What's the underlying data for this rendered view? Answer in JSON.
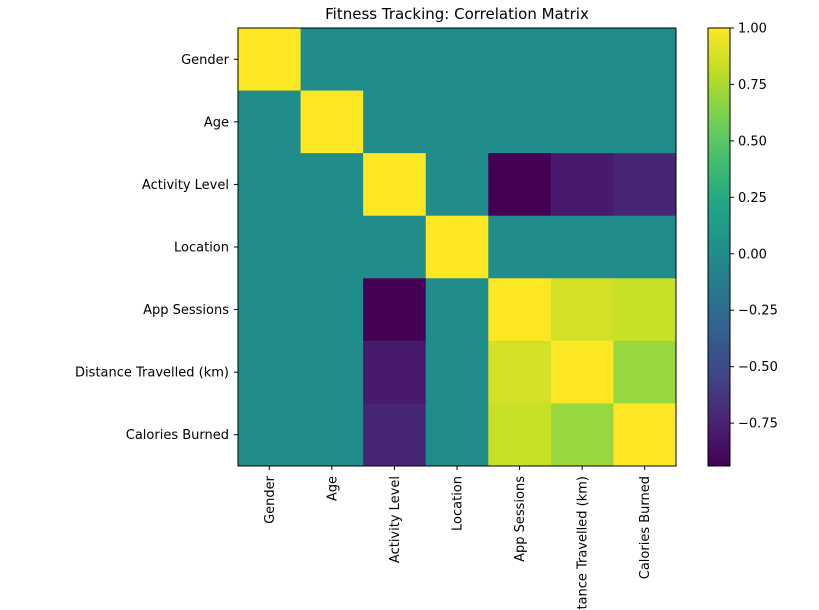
{
  "chart_data": {
    "type": "heatmap",
    "title": "Fitness Tracking: Correlation Matrix",
    "xlabel": "",
    "ylabel": "",
    "row_labels": [
      "Gender",
      "Age",
      "Activity Level",
      "Location",
      "App Sessions",
      "Distance Travelled (km)",
      "Calories Burned"
    ],
    "col_labels": [
      "Gender",
      "Age",
      "Activity Level",
      "Location",
      "App Sessions",
      "Distance Travelled (km)",
      "Calories Burned"
    ],
    "values": [
      [
        1.0,
        0.0,
        0.0,
        0.0,
        0.0,
        0.0,
        0.0
      ],
      [
        0.0,
        1.0,
        0.0,
        0.0,
        0.0,
        0.0,
        0.0
      ],
      [
        0.0,
        0.0,
        1.0,
        0.0,
        -0.94,
        -0.8,
        -0.73
      ],
      [
        0.0,
        0.0,
        0.0,
        1.0,
        0.0,
        0.0,
        0.0
      ],
      [
        0.0,
        0.0,
        -0.94,
        0.0,
        1.0,
        0.87,
        0.84
      ],
      [
        0.0,
        0.0,
        -0.8,
        0.0,
        0.87,
        1.0,
        0.7
      ],
      [
        0.0,
        0.0,
        -0.73,
        0.0,
        0.84,
        0.7,
        1.0
      ]
    ],
    "colormap": "viridis",
    "colorbar": {
      "vmin": -0.94,
      "vmax": 1.0,
      "ticks": [
        1.0,
        0.75,
        0.5,
        0.25,
        0.0,
        -0.25,
        -0.5,
        -0.75
      ],
      "tick_labels": [
        "1.00",
        "0.75",
        "0.50",
        "0.25",
        "0.00",
        "−0.25",
        "−0.50",
        "−0.75"
      ]
    },
    "grid": false
  }
}
